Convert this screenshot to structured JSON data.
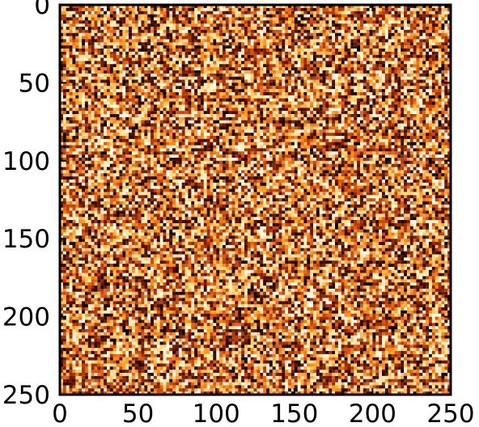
{
  "chart_data": {
    "type": "heatmap",
    "title": "",
    "xlabel": "",
    "ylabel": "",
    "xlim": [
      0,
      250
    ],
    "ylim": [
      250,
      0
    ],
    "x_ticks": [
      "0",
      "50",
      "100",
      "150",
      "200",
      "250"
    ],
    "y_ticks": [
      "0",
      "50",
      "100",
      "150",
      "200",
      "250"
    ],
    "grid": false,
    "colormap": "gist_heat_r",
    "colormap_stops": [
      "#ffffff",
      "#ffe08a",
      "#ff9a1f",
      "#d0480a",
      "#6e1502",
      "#000000"
    ],
    "value_range": [
      0,
      1
    ],
    "frame_color": "#000000",
    "pattern": "random noise, about 125 x 125 cells"
  }
}
